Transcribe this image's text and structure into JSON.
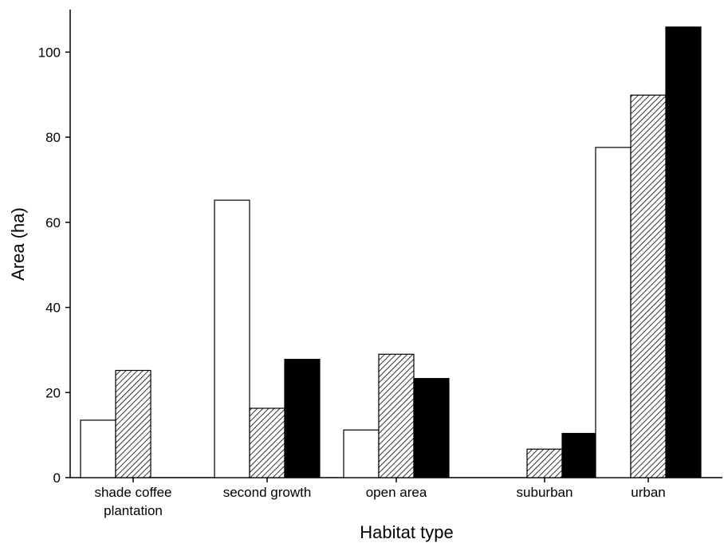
{
  "chart_data": {
    "type": "bar",
    "categories": [
      [
        "shade coffee",
        "plantation"
      ],
      [
        "second growth"
      ],
      [
        "open area"
      ],
      [
        "suburban"
      ],
      [
        "urban"
      ]
    ],
    "series": [
      {
        "fill": "#ffffff",
        "pattern": "none",
        "values": [
          13.5,
          65.2,
          11.2,
          0,
          77.6
        ]
      },
      {
        "fill": "#ffffff",
        "pattern": "diagonal-hatch",
        "values": [
          25.2,
          16.3,
          29.0,
          6.7,
          89.9
        ]
      },
      {
        "fill": "#000000",
        "pattern": "solid",
        "values": [
          0,
          27.8,
          23.3,
          10.4,
          105.9
        ]
      }
    ],
    "xlabel": "Habitat type",
    "ylabel": "Area (ha)",
    "ylim": [
      0,
      110
    ],
    "yticks": [
      0,
      20,
      40,
      60,
      80,
      100
    ],
    "grid": false,
    "legend": "none"
  }
}
